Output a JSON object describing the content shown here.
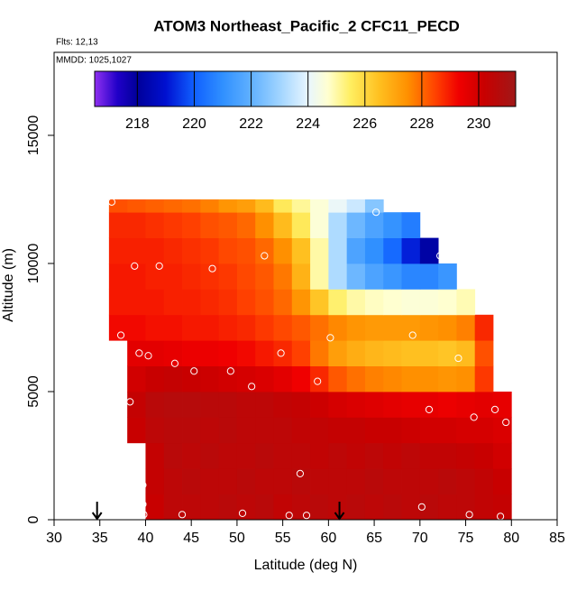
{
  "chart_data": {
    "type": "heatmap",
    "title": "ATOM3 Northeast_Pacific_2 CFC11_PECD",
    "flights": "Flts: 12,13",
    "dates": "MMDD: 1025,1027",
    "xlabel": "Latitude (deg N)",
    "ylabel": "Altitude (m)",
    "xlim": [
      30,
      85
    ],
    "xticks": [
      30,
      35,
      40,
      45,
      50,
      55,
      60,
      65,
      70,
      75,
      80,
      85
    ],
    "ylim": [
      0,
      18240
    ],
    "yticks": [
      0,
      5000,
      10000,
      15000
    ],
    "x_edges": [
      36,
      38,
      40,
      42,
      44,
      46,
      48,
      50,
      52,
      54,
      56,
      58,
      60,
      62,
      64,
      66,
      68,
      70,
      72,
      74,
      76,
      78,
      80
    ],
    "y_edges": [
      0,
      1000,
      2000,
      3000,
      4000,
      5000,
      6000,
      7000,
      8000,
      9000,
      10000,
      11000,
      12000,
      12500
    ],
    "z": [
      [
        null,
        null,
        230.2,
        230.5,
        230.5,
        230.5,
        230.6,
        230.5,
        230.6,
        230.4,
        230.5,
        230.6,
        230.5,
        230.6,
        230.5,
        230.6,
        230.5,
        230.6,
        230.5,
        230.5,
        230.4,
        230.3
      ],
      [
        null,
        null,
        230.3,
        230.5,
        230.6,
        230.5,
        230.5,
        230.6,
        230.5,
        230.5,
        230.6,
        230.5,
        230.5,
        230.5,
        230.6,
        230.5,
        230.5,
        230.5,
        230.6,
        230.5,
        230.4,
        230.2
      ],
      [
        null,
        null,
        230.3,
        230.6,
        230.5,
        230.6,
        230.5,
        230.5,
        230.6,
        230.5,
        230.5,
        230.4,
        230.5,
        230.4,
        230.5,
        230.4,
        230.5,
        230.4,
        230.4,
        230.3,
        230.2,
        230.0
      ],
      [
        null,
        230.2,
        230.5,
        230.6,
        230.6,
        230.5,
        230.6,
        230.5,
        230.5,
        230.5,
        230.4,
        230.4,
        230.3,
        230.3,
        230.2,
        230.2,
        230.1,
        230.0,
        230.0,
        229.9,
        229.9,
        229.8
      ],
      [
        null,
        230.3,
        230.6,
        230.7,
        230.7,
        230.6,
        230.6,
        230.5,
        230.5,
        230.4,
        230.3,
        230.1,
        229.9,
        229.8,
        229.7,
        229.6,
        229.5,
        229.5,
        229.4,
        229.5,
        229.6,
        229.5
      ],
      [
        null,
        230.0,
        230.2,
        230.3,
        230.2,
        230.1,
        230.0,
        229.9,
        229.8,
        229.6,
        229.3,
        228.8,
        228.2,
        227.9,
        227.7,
        227.6,
        227.5,
        227.5,
        227.4,
        227.5,
        228.6,
        null
      ],
      [
        null,
        229.6,
        229.6,
        229.5,
        229.4,
        229.4,
        229.3,
        229.2,
        229.0,
        228.8,
        228.5,
        227.8,
        227.2,
        226.9,
        226.7,
        226.6,
        226.5,
        226.5,
        226.4,
        226.6,
        228.3,
        null
      ],
      [
        229.2,
        229.2,
        229.1,
        229.1,
        229.0,
        229.0,
        228.9,
        228.8,
        228.6,
        228.4,
        228.2,
        227.9,
        227.6,
        227.4,
        227.3,
        227.3,
        227.3,
        227.4,
        227.5,
        227.7,
        228.8,
        null
      ],
      [
        229.0,
        229.0,
        229.0,
        228.9,
        228.9,
        228.8,
        228.7,
        228.5,
        228.3,
        228.0,
        227.4,
        226.4,
        225.4,
        225.0,
        224.8,
        224.7,
        224.6,
        224.6,
        224.7,
        224.9,
        null,
        null
      ],
      [
        229.0,
        229.0,
        228.9,
        228.9,
        228.8,
        228.7,
        228.6,
        228.4,
        228.2,
        227.8,
        226.8,
        225.0,
        223.2,
        222.2,
        221.6,
        221.2,
        220.8,
        220.8,
        221.2,
        null,
        null,
        null
      ],
      [
        228.9,
        228.9,
        228.9,
        228.8,
        228.7,
        228.6,
        228.4,
        228.3,
        228.0,
        227.5,
        226.5,
        225.0,
        223.2,
        221.6,
        221.0,
        220.2,
        219.2,
        218.2,
        null,
        null,
        null,
        null
      ],
      [
        228.8,
        228.8,
        228.7,
        228.6,
        228.5,
        228.3,
        228.2,
        228.0,
        227.5,
        226.6,
        225.6,
        224.6,
        223.2,
        222.2,
        221.6,
        221.1,
        220.6,
        null,
        null,
        null,
        null,
        null
      ],
      [
        228.3,
        228.2,
        228.1,
        228.0,
        227.9,
        227.7,
        227.4,
        227.2,
        226.6,
        225.6,
        225.1,
        224.6,
        224.1,
        223.6,
        222.6,
        null,
        null,
        null,
        null,
        null,
        null,
        null
      ]
    ],
    "samples": {
      "x": [
        36.3,
        65.2,
        72.2,
        38.8,
        41.5,
        47.3,
        53.0,
        37.3,
        60.2,
        69.2,
        78.8,
        39.3,
        40.3,
        43.2,
        45.3,
        49.3,
        54.8,
        74.2,
        51.6,
        58.8,
        38.3,
        71.0,
        78.2,
        75.9,
        79.4,
        56.9,
        39.7,
        39.7,
        70.2,
        39.8,
        44.0,
        50.6,
        55.7,
        57.6,
        75.4,
        78.8
      ],
      "y": [
        12400,
        12000,
        10300,
        9900,
        9900,
        9800,
        10300,
        7200,
        7100,
        7200,
        7400,
        6500,
        6400,
        6100,
        5800,
        5800,
        6500,
        6300,
        5200,
        5400,
        4600,
        4300,
        4300,
        4000,
        3800,
        1800,
        1350,
        600,
        500,
        200,
        200,
        250,
        170,
        170,
        200,
        130
      ],
      "color": "#ffffff"
    },
    "arrows_x": [
      34.7,
      61.2
    ],
    "clim": [
      216.5,
      231.3
    ],
    "cbar_ticks": [
      218,
      220,
      222,
      224,
      226,
      228,
      230
    ],
    "colormap": [
      [
        216.5,
        "#9030f0"
      ],
      [
        217.3,
        "#2000c8"
      ],
      [
        218,
        "#00009a"
      ],
      [
        219,
        "#0010d0"
      ],
      [
        220,
        "#1060ff"
      ],
      [
        221,
        "#3090ff"
      ],
      [
        222,
        "#60b0ff"
      ],
      [
        223,
        "#a0d4ff"
      ],
      [
        224,
        "#e8f6ff"
      ],
      [
        224.7,
        "#ffffd0"
      ],
      [
        225.5,
        "#ffee60"
      ],
      [
        226.5,
        "#ffc020"
      ],
      [
        227.5,
        "#ff9000"
      ],
      [
        228.5,
        "#ff4000"
      ],
      [
        229.3,
        "#f00000"
      ],
      [
        230.2,
        "#c80000"
      ],
      [
        231.3,
        "#a01818"
      ]
    ]
  }
}
